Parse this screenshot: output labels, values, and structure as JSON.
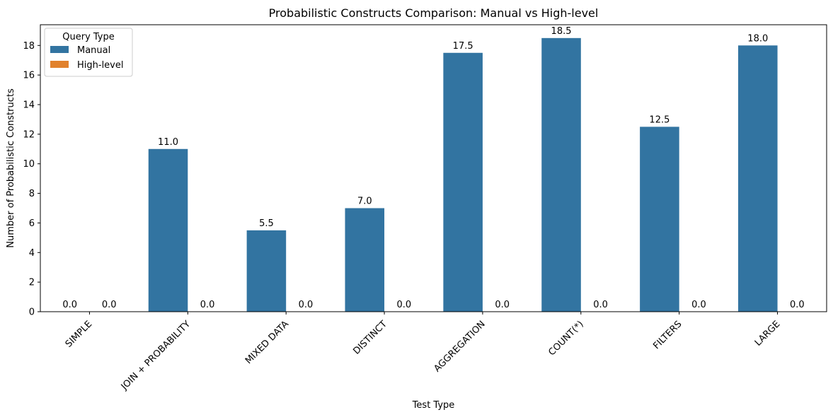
{
  "chart_data": {
    "type": "bar",
    "title": "Probabilistic Constructs Comparison: Manual vs High-level",
    "xlabel": "Test Type",
    "ylabel": "Number of Probabilistic Constructs",
    "categories": [
      "SIMPLE",
      "JOIN + PROBABILITY",
      "MIXED DATA",
      "DISTINCT",
      "AGGREGATION",
      "COUNT(*)",
      "FILTERS",
      "LARGE"
    ],
    "series": [
      {
        "name": "Manual",
        "values": [
          0.0,
          11.0,
          5.5,
          7.0,
          17.5,
          18.5,
          12.5,
          18.0
        ],
        "color": "#3274a1"
      },
      {
        "name": "High-level",
        "values": [
          0.0,
          0.0,
          0.0,
          0.0,
          0.0,
          0.0,
          0.0,
          0.0
        ],
        "color": "#e1812c"
      }
    ],
    "ylim": [
      0,
      19.4
    ],
    "yticks": [
      0,
      2,
      4,
      6,
      8,
      10,
      12,
      14,
      16,
      18
    ],
    "legend": {
      "title": "Query Type",
      "position": "top-left"
    },
    "grid": false
  }
}
